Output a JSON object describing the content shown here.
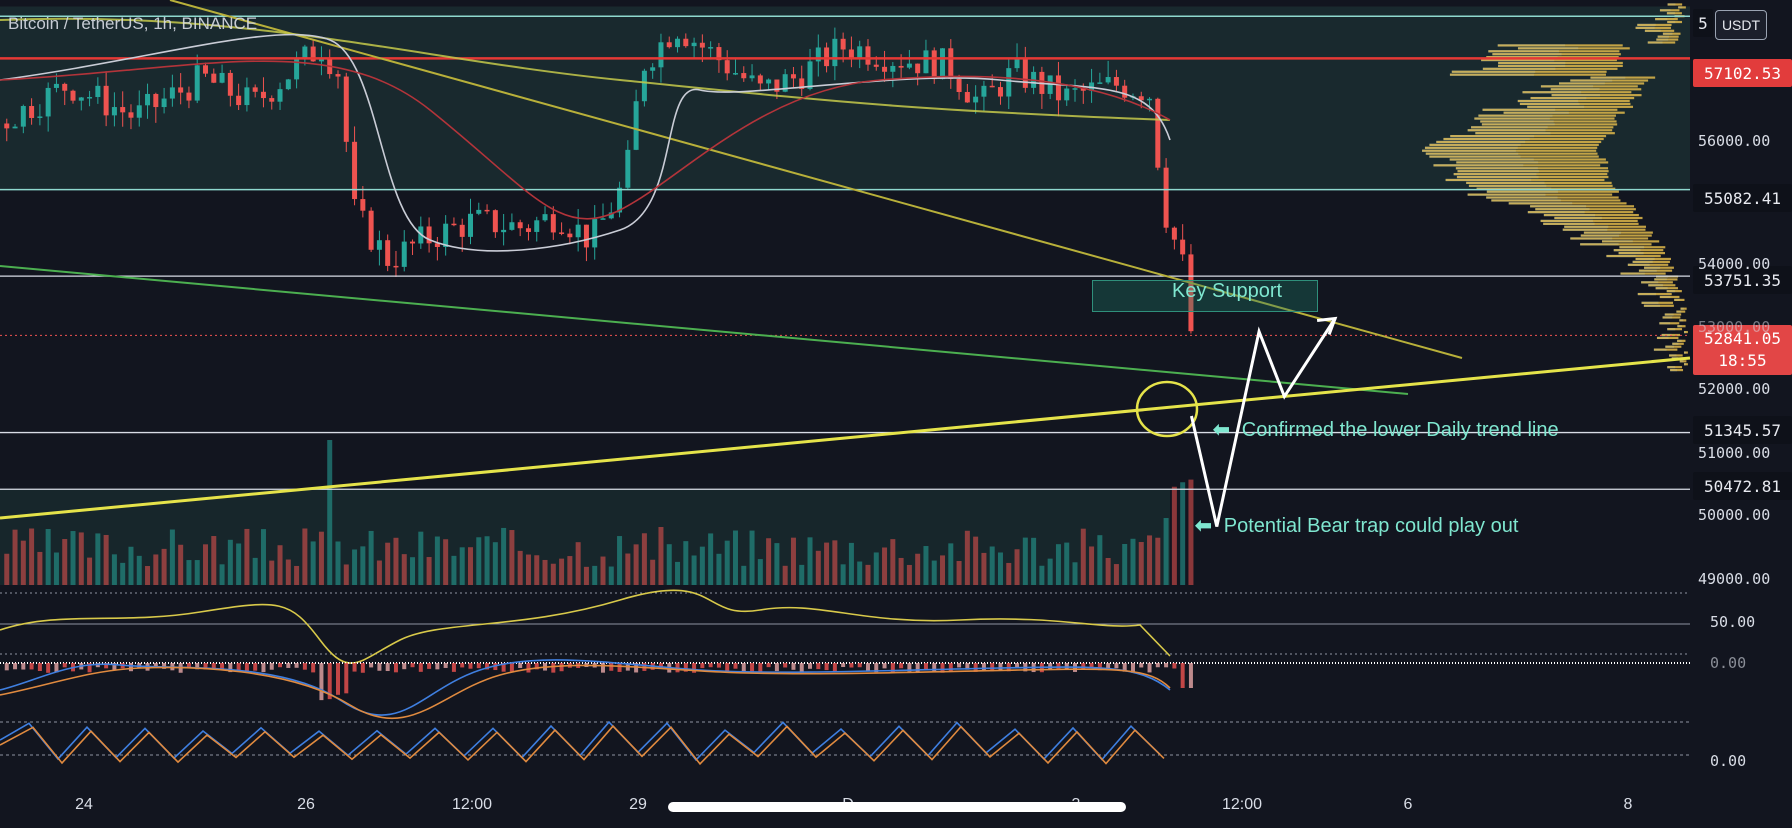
{
  "symbol_text": "Bitcoin / TetherUS, 1h, BINANCE",
  "unit_badge": "USDT",
  "colors": {
    "background": "#12151f",
    "up": "#26a69a",
    "down": "#ef5350",
    "zone_fill": "#1f3b3a",
    "resistance": "#e53935",
    "trend_yellow": "#e5e34a",
    "trend_olive": "#b8b03a",
    "trend_green": "#4caf50",
    "annotation": "#7fe7d0",
    "volume_profile_up": "#e0b84a",
    "volume_profile_down": "#2f6fb7"
  },
  "price_tags": {
    "top": "5",
    "resistance": "57102.53",
    "zone_low": "55082.41",
    "key_support": "53751.35",
    "current_price": "52841.05",
    "countdown": "18:55",
    "lower_line": "51345.57",
    "bottom_line": "50472.81"
  },
  "y_axis_labels": [
    "56000.00",
    "54000.00",
    "53000.00",
    "52000.00",
    "51000.00",
    "50000.00",
    "49000.00"
  ],
  "rsi_label": "50.00",
  "macd_label": "0.00",
  "stoch_label": "0.00",
  "time_labels": [
    "24",
    "26",
    "12:00",
    "29",
    "D",
    "3",
    "12:00",
    "6",
    "8"
  ],
  "annotations": {
    "key_support": "Key Support",
    "confirmed": "Confirmed the lower Daily trend line",
    "bear_trap": "Potential Bear trap could play out",
    "arrow_glyph": "⬅"
  },
  "chart_data": {
    "type": "candlestick",
    "title": "Bitcoin / TetherUS, 1h, BINANCE",
    "ylabel": "USDT",
    "ylim": [
      49000,
      58000
    ],
    "horizontal_levels": [
      57102.53,
      55082.41,
      53751.35,
      52841.05,
      51345.57,
      50472.81
    ],
    "key_support_zone": [
      53751.35,
      53300
    ],
    "close_path": [
      [
        0,
        56100
      ],
      [
        0.04,
        56700
      ],
      [
        0.08,
        56200
      ],
      [
        0.12,
        56800
      ],
      [
        0.15,
        56400
      ],
      [
        0.19,
        57300
      ],
      [
        0.2,
        56900
      ],
      [
        0.21,
        54700
      ],
      [
        0.23,
        54000
      ],
      [
        0.25,
        54300
      ],
      [
        0.28,
        54600
      ],
      [
        0.31,
        54500
      ],
      [
        0.33,
        54700
      ],
      [
        0.35,
        54300
      ],
      [
        0.37,
        55200
      ],
      [
        0.38,
        57000
      ],
      [
        0.4,
        57600
      ],
      [
        0.43,
        57000
      ],
      [
        0.45,
        56600
      ],
      [
        0.47,
        56800
      ],
      [
        0.5,
        57300
      ],
      [
        0.53,
        57100
      ],
      [
        0.56,
        57000
      ],
      [
        0.58,
        56400
      ],
      [
        0.6,
        56900
      ],
      [
        0.63,
        56500
      ],
      [
        0.66,
        56700
      ],
      [
        0.68,
        56600
      ],
      [
        0.685,
        55600
      ],
      [
        0.69,
        54700
      ],
      [
        0.7,
        53900
      ],
      [
        0.705,
        52841
      ]
    ],
    "projection": [
      [
        0.705,
        51600
      ],
      [
        0.72,
        49900
      ],
      [
        0.745,
        52900
      ],
      [
        0.76,
        51900
      ],
      [
        0.79,
        53100
      ]
    ],
    "rsi": {
      "label": "50.00"
    },
    "macd": {
      "label": "0.00"
    },
    "stochastic": {
      "label": "0.00"
    }
  }
}
